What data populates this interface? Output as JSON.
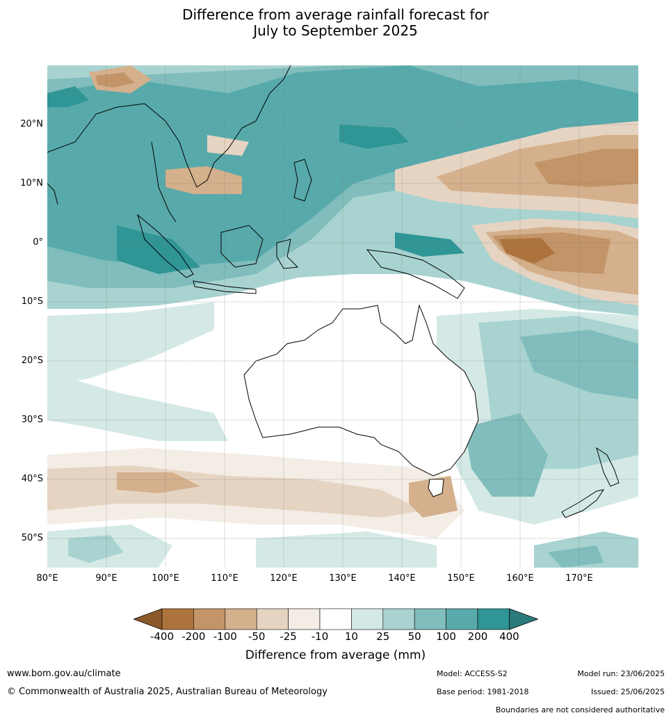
{
  "title": {
    "line1": "Difference from average rainfall forecast for",
    "line2": "July to September 2025"
  },
  "map": {
    "lat_labels": [
      "20°N",
      "10°N",
      "0°",
      "10°S",
      "20°S",
      "30°S",
      "40°S",
      "50°S"
    ],
    "lon_labels": [
      "80°E",
      "90°E",
      "100°E",
      "110°E",
      "120°E",
      "130°E",
      "140°E",
      "150°E",
      "160°E",
      "170°E"
    ],
    "lat_range": [
      -55,
      30
    ],
    "lon_range": [
      80,
      180
    ]
  },
  "legend": {
    "title": "Difference from average (mm)",
    "ticks": [
      "-400",
      "-200",
      "-100",
      "-50",
      "-25",
      "-10",
      "10",
      "25",
      "50",
      "100",
      "200",
      "400"
    ],
    "colors": [
      "#8c5a2a",
      "#ad733c",
      "#c29468",
      "#d4b08c",
      "#e6d4c2",
      "#f3ede6",
      "#ffffff",
      "#d4e9e6",
      "#a8d3d0",
      "#80bdbc",
      "#58aaaa",
      "#2f9595",
      "#2a7c7c"
    ]
  },
  "footer": {
    "url": "www.bom.gov.au/climate",
    "copyright": "© Commonwealth of Australia 2025, Australian Bureau of Meteorology",
    "model": "Model: ACCESS-S2",
    "base_period": "Base period: 1981-2018",
    "model_run": "Model run: 23/06/2025",
    "issued": "Issued: 25/06/2025",
    "disclaimer": "Boundaries are not considered authoritative"
  }
}
